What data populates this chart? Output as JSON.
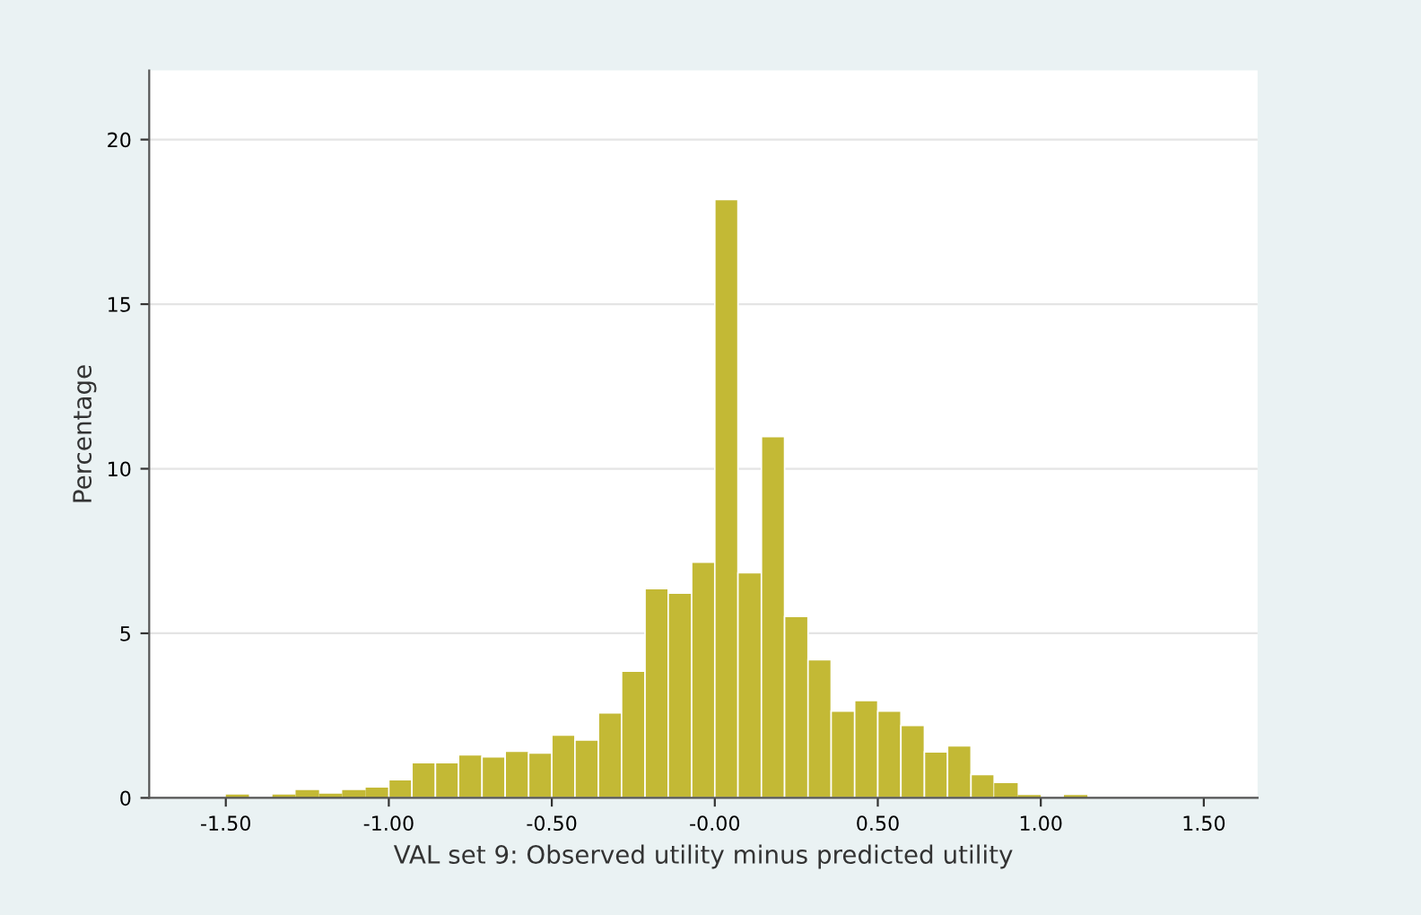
{
  "chart_data": {
    "type": "histogram",
    "xlabel": "VAL set 9: Observed utility minus predicted utility",
    "ylabel": "Percentage",
    "bins": [
      -1.5,
      -1.429,
      -1.357,
      -1.286,
      -1.214,
      -1.143,
      -1.071,
      -1.0,
      -0.929,
      -0.857,
      -0.786,
      -0.714,
      -0.643,
      -0.571,
      -0.5,
      -0.429,
      -0.357,
      -0.286,
      -0.214,
      -0.143,
      -0.071,
      0,
      0.071,
      0.143,
      0.214,
      0.286,
      0.357,
      0.429,
      0.5,
      0.571,
      0.643,
      0.714,
      0.786,
      0.857,
      0.929,
      1.0,
      1.071,
      1.143
    ],
    "values": [
      0.1,
      0,
      0.1,
      0.24,
      0.13,
      0.24,
      0.31,
      0.55,
      1.07,
      1.07,
      1.31,
      1.25,
      1.42,
      1.36,
      1.91,
      1.76,
      2.58,
      3.85,
      6.36,
      6.22,
      7.16,
      18.18,
      6.84,
      10.98,
      5.51,
      4.2,
      2.64,
      2.96,
      2.64,
      2.2,
      1.4,
      1.58,
      0.71,
      0.45,
      0.09,
      0,
      0.09
    ],
    "color": "#c3b935",
    "xlim": [
      -1.735,
      1.665
    ],
    "ylim": [
      0,
      22.1
    ],
    "xticks": [
      {
        "value": -1.5,
        "label": "-1.50"
      },
      {
        "value": -1.0,
        "label": "-1.00"
      },
      {
        "value": -0.5,
        "label": "-0.50"
      },
      {
        "value": 0,
        "label": "-0.00"
      },
      {
        "value": 0.5,
        "label": "0.50"
      },
      {
        "value": 1.0,
        "label": "1.00"
      },
      {
        "value": 1.5,
        "label": "1.50"
      }
    ],
    "yticks": [
      0,
      5,
      10,
      15,
      20
    ],
    "grid": "y"
  }
}
